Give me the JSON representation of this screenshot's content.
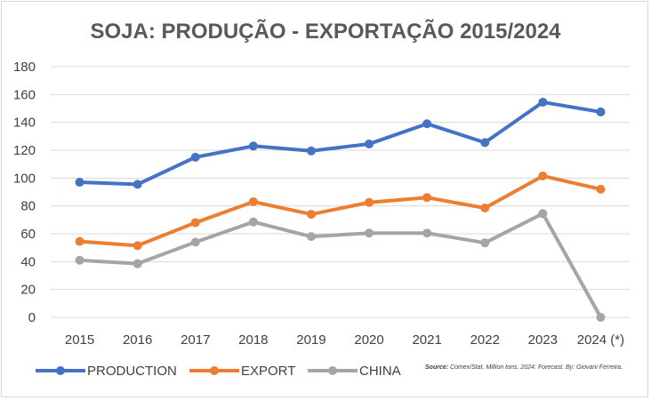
{
  "chart_data": {
    "type": "line",
    "title": "SOJA: PRODUÇÃO - EXPORTAÇÃO 2015/2024",
    "categories": [
      "2015",
      "2016",
      "2017",
      "2018",
      "2019",
      "2020",
      "2021",
      "2022",
      "2023",
      "2024 (*)"
    ],
    "ylim": [
      0,
      180
    ],
    "yticks": [
      0,
      20,
      40,
      60,
      80,
      100,
      120,
      140,
      160,
      180
    ],
    "grid": true,
    "legend": "bottom-left",
    "series": [
      {
        "name": "PRODUCTION",
        "color": "#4472c4",
        "values": [
          97,
          95.5,
          115,
          123,
          119.5,
          124.5,
          139,
          125.5,
          154.5,
          147.5
        ]
      },
      {
        "name": "EXPORT",
        "color": "#ed7d31",
        "values": [
          54.5,
          51.5,
          68,
          83,
          74,
          82.5,
          86,
          78.5,
          101.5,
          92
        ]
      },
      {
        "name": "CHINA",
        "color": "#a5a5a5",
        "values": [
          41,
          38.5,
          54,
          68.5,
          58,
          60.5,
          60.5,
          53.5,
          74.5,
          0
        ]
      }
    ],
    "source_label": "Source:",
    "source_text": " Comex/Stat. Million tons. 2024: Forecast. By: Giovani Ferreira."
  }
}
